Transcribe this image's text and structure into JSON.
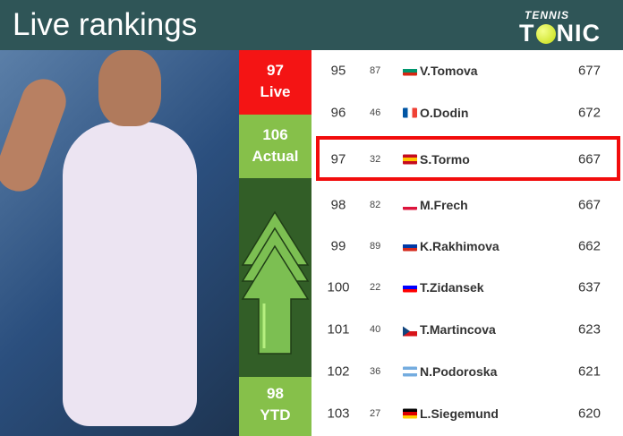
{
  "header": {
    "title": "Live rankings",
    "logo": "TENNIS TONIC"
  },
  "ranks": {
    "live": "97",
    "live_label": "Live",
    "actual": "106",
    "actual_label": "Actual",
    "ytd": "98",
    "ytd_label": "YTD",
    "trend": "up-arrow-icon"
  },
  "rows": [
    {
      "rank": "95",
      "prev": "87",
      "flag": [
        "#fff",
        "#00966e",
        "#d62612"
      ],
      "name": "V.Tomova",
      "points": "677"
    },
    {
      "rank": "96",
      "prev": "46",
      "flag": "fr",
      "name": "O.Dodin",
      "points": "672"
    },
    {
      "rank": "97",
      "prev": "32",
      "flag": [
        "#c60b1e",
        "#ffc400",
        "#c60b1e"
      ],
      "name": "S.Tormo",
      "points": "667",
      "highlight": true
    },
    {
      "rank": "98",
      "prev": "82",
      "flag": [
        "#fff",
        "#fff",
        "#dc143c"
      ],
      "name": "M.Frech",
      "points": "667"
    },
    {
      "rank": "99",
      "prev": "89",
      "flag": [
        "#fff",
        "#0039a6",
        "#d52b1e"
      ],
      "name": "K.Rakhimova",
      "points": "662"
    },
    {
      "rank": "100",
      "prev": "22",
      "flag": [
        "#fff",
        "#0000ff",
        "#ff0000"
      ],
      "name": "T.Zidansek",
      "points": "637"
    },
    {
      "rank": "101",
      "prev": "40",
      "flag": "cz",
      "name": "T.Martincova",
      "points": "623"
    },
    {
      "rank": "102",
      "prev": "36",
      "flag": [
        "#74acdf",
        "#fff",
        "#74acdf"
      ],
      "name": "N.Podoroska",
      "points": "621"
    },
    {
      "rank": "103",
      "prev": "27",
      "flag": [
        "#000",
        "#dd0000",
        "#ffce00"
      ],
      "name": "L.Siegemund",
      "points": "620"
    }
  ]
}
